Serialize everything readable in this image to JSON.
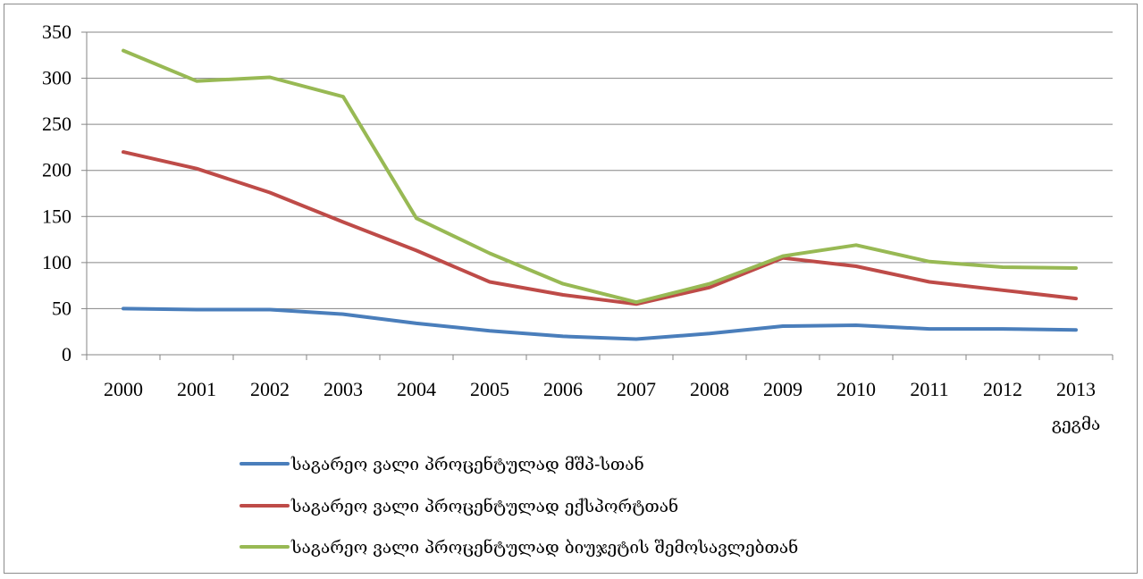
{
  "chart_data": {
    "type": "line",
    "categories": [
      "2000",
      "2001",
      "2002",
      "2003",
      "2004",
      "2005",
      "2006",
      "2007",
      "2008",
      "2009",
      "2010",
      "2011",
      "2012",
      "2013"
    ],
    "category_sublabels": {
      "2013": "გეგმა"
    },
    "ylim": [
      0,
      350
    ],
    "yticks": [
      0,
      50,
      100,
      150,
      200,
      250,
      300,
      350
    ],
    "grid": true,
    "legend_position": "bottom",
    "series": [
      {
        "name": "საგარეო ვალი პროცენტულად მშპ-სთან",
        "color": "#4a7ebb",
        "values": [
          50,
          49,
          49,
          44,
          34,
          26,
          20,
          17,
          23,
          31,
          32,
          28,
          28,
          27
        ]
      },
      {
        "name": "საგარეო ვალი პროცენტულად ექსპორტთან",
        "color": "#be4b48",
        "values": [
          220,
          202,
          176,
          144,
          113,
          79,
          65,
          55,
          73,
          105,
          96,
          79,
          70,
          61
        ]
      },
      {
        "name": "საგარეო ვალი პროცენტულად ბიუჯეტის შემოსავლებთან",
        "color": "#98b954",
        "values": [
          330,
          297,
          301,
          280,
          148,
          110,
          77,
          57,
          77,
          107,
          119,
          101,
          95,
          94
        ]
      }
    ]
  }
}
